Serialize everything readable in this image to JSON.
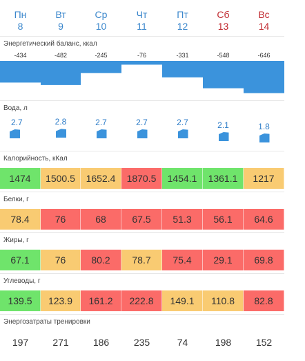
{
  "days": [
    {
      "name": "Пн",
      "date": "8",
      "weekend": false
    },
    {
      "name": "Вт",
      "date": "9",
      "weekend": false
    },
    {
      "name": "Ср",
      "date": "10",
      "weekend": false
    },
    {
      "name": "Чт",
      "date": "11",
      "weekend": false
    },
    {
      "name": "Пт",
      "date": "12",
      "weekend": false
    },
    {
      "name": "Сб",
      "date": "13",
      "weekend": true
    },
    {
      "name": "Вс",
      "date": "14",
      "weekend": true
    }
  ],
  "energy_balance": {
    "label": "Энергетический баланс, ккал",
    "values": [
      -434,
      -482,
      -245,
      -76,
      -331,
      -548,
      -646
    ],
    "bar_color": "#3b93dc"
  },
  "water": {
    "label": "Вода, л",
    "values": [
      "2.7",
      "2.8",
      "2.7",
      "2.7",
      "2.7",
      "2.1",
      "1.8"
    ],
    "icon": "water-cup-icon",
    "color": "#3b93dc"
  },
  "metrics": [
    {
      "key": "calories",
      "label": "Калорийность, кКал",
      "values": [
        "1474",
        "1500.5",
        "1652.4",
        "1870.5",
        "1454.1",
        "1361.1",
        "1217"
      ],
      "status": [
        "green",
        "yellow",
        "yellow",
        "red",
        "green",
        "green",
        "yellow"
      ]
    },
    {
      "key": "protein",
      "label": "Белки, г",
      "values": [
        "78.4",
        "76",
        "68",
        "67.5",
        "51.3",
        "56.1",
        "64.6"
      ],
      "status": [
        "yellow",
        "red",
        "red",
        "red",
        "red",
        "red",
        "red"
      ]
    },
    {
      "key": "fat",
      "label": "Жиры, г",
      "values": [
        "67.1",
        "76",
        "80.2",
        "78.7",
        "75.4",
        "29.1",
        "69.8"
      ],
      "status": [
        "green",
        "yellow",
        "red",
        "yellow",
        "red",
        "red",
        "red"
      ]
    },
    {
      "key": "carbs",
      "label": "Углеводы, г",
      "values": [
        "139.5",
        "123.9",
        "161.2",
        "222.8",
        "149.1",
        "110.8",
        "82.8"
      ],
      "status": [
        "green",
        "yellow",
        "red",
        "red",
        "yellow",
        "yellow",
        "red"
      ]
    }
  ],
  "status_colors": {
    "green": "#6fe46b",
    "yellow": "#f9cb72",
    "red": "#fb6b68"
  },
  "training": {
    "label": "Энергозатраты тренировки",
    "values": [
      "197",
      "271",
      "186",
      "235",
      "74",
      "198",
      "152"
    ]
  }
}
